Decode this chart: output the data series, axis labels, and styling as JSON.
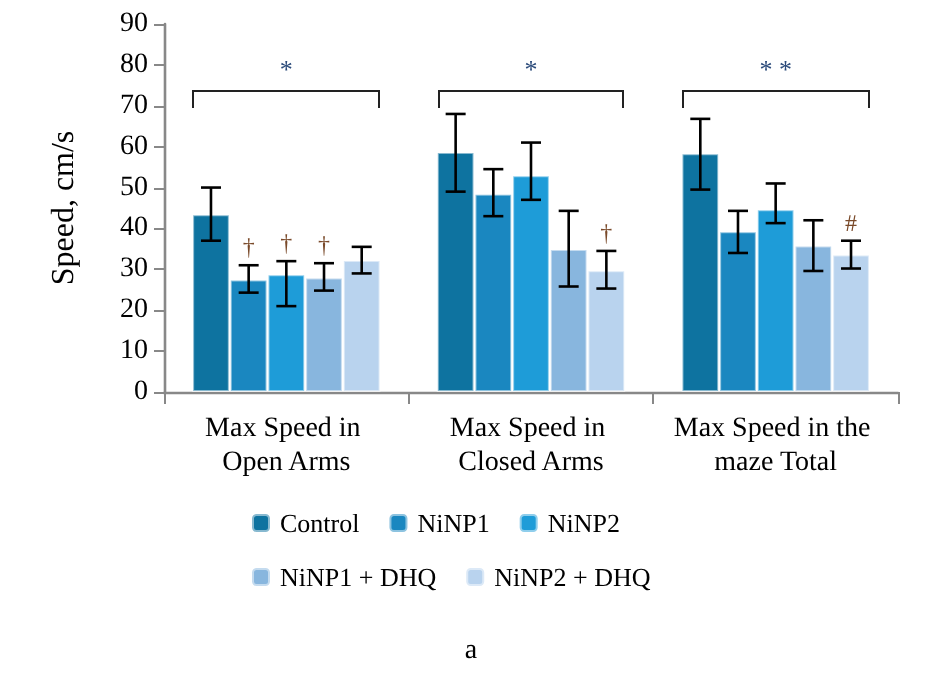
{
  "chart_data": {
    "type": "bar",
    "ylabel": "Speed, cm/s",
    "categories": [
      "Max Speed in Open Arms",
      "Max Speed in Closed Arms",
      "Max Speed in the maze Total"
    ],
    "series": [
      {
        "name": "Control",
        "color": "#0e73a0",
        "values": [
          43.5,
          58.7,
          58.4
        ],
        "errors": [
          [
            37,
            50
          ],
          [
            49,
            68
          ],
          [
            49.5,
            66.8
          ]
        ]
      },
      {
        "name": "NiNP1",
        "color": "#1a87c0",
        "values": [
          27.5,
          48.5,
          39.3
        ],
        "errors": [
          [
            24.3,
            31
          ],
          [
            43,
            54.5
          ],
          [
            34,
            44.3
          ]
        ],
        "value_labels": [
          "†",
          null,
          null
        ]
      },
      {
        "name": "NiNP2",
        "color": "#1e9cd8",
        "values": [
          28.8,
          53,
          44.7
        ],
        "errors": [
          [
            21,
            32
          ],
          [
            47,
            61
          ],
          [
            41.3,
            51
          ]
        ],
        "value_labels": [
          "†",
          null,
          null
        ]
      },
      {
        "name": "NiNP1 + DHQ",
        "color": "#88b6de",
        "values": [
          28,
          35,
          35.8
        ],
        "errors": [
          [
            24.8,
            31.5
          ],
          [
            25.8,
            44.3
          ],
          [
            29.6,
            42
          ]
        ],
        "value_labels": [
          "†",
          null,
          null
        ]
      },
      {
        "name": "NiNP2 + DHQ",
        "color": "#b9d3ee",
        "values": [
          32.3,
          29.8,
          33.6
        ],
        "errors": [
          [
            29,
            35.5
          ],
          [
            25.3,
            34.5
          ],
          [
            30.2,
            37
          ]
        ],
        "value_labels": [
          null,
          "†",
          "#"
        ]
      }
    ],
    "ylim": [
      0,
      90
    ],
    "yticks": [
      0,
      10,
      20,
      30,
      40,
      50,
      60,
      70,
      80,
      90
    ],
    "grid": false,
    "legend": "bottom",
    "annotations": [
      "*",
      "*",
      "* *",
      "a"
    ]
  }
}
